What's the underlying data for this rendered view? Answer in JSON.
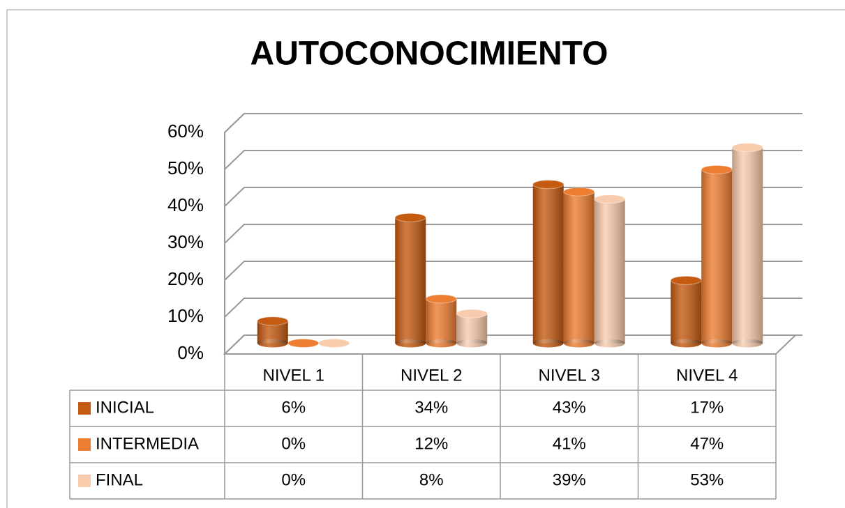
{
  "chart_data": {
    "type": "bar3d",
    "title": "AUTOCONOCIMIENTO",
    "categories": [
      "NIVEL 1",
      "NIVEL 2",
      "NIVEL 3",
      "NIVEL 4"
    ],
    "series": [
      {
        "name": "INICIAL",
        "color": "#c55a11",
        "values": [
          6,
          34,
          43,
          17
        ],
        "value_labels": [
          "6%",
          "34%",
          "43%",
          "17%"
        ]
      },
      {
        "name": "INTERMEDIA",
        "color": "#ed7d31",
        "values": [
          0,
          12,
          41,
          47
        ],
        "value_labels": [
          "0%",
          "12%",
          "41%",
          "47%"
        ]
      },
      {
        "name": "FINAL",
        "color": "#f8cbad",
        "values": [
          0,
          8,
          39,
          53
        ],
        "value_labels": [
          "0%",
          "8%",
          "39%",
          "53%"
        ]
      }
    ],
    "ylim": [
      0,
      60
    ],
    "yticks": [
      {
        "value": 0,
        "label": "0%"
      },
      {
        "value": 10,
        "label": "10%"
      },
      {
        "value": 20,
        "label": "20%"
      },
      {
        "value": 30,
        "label": "30%"
      },
      {
        "value": 40,
        "label": "40%"
      },
      {
        "value": 50,
        "label": "50%"
      },
      {
        "value": 60,
        "label": "60%"
      }
    ],
    "grid": true
  }
}
